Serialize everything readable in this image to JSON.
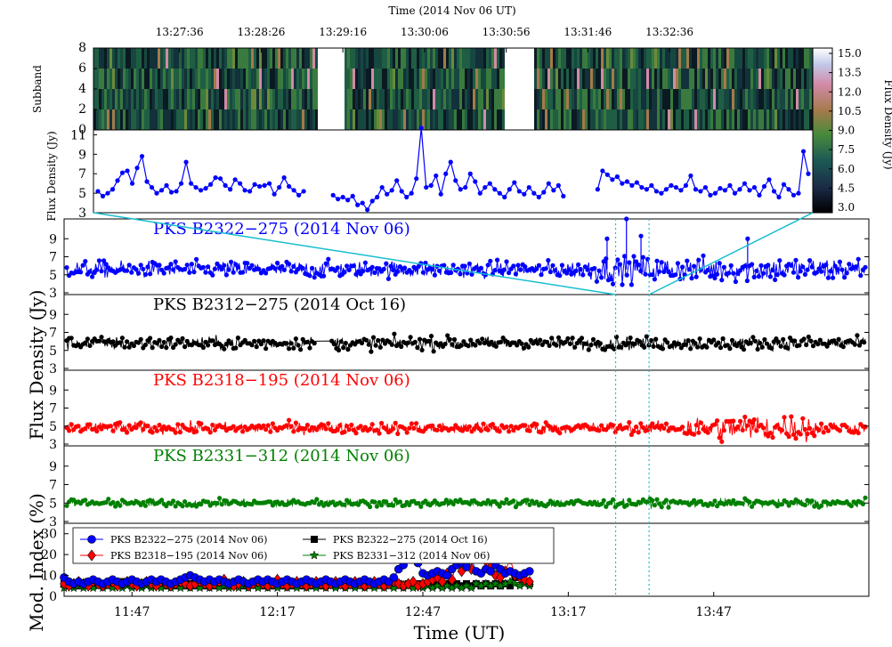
{
  "top_axis_title": "Time (2014 Nov 06 UT)",
  "top_ticks": [
    "13:27:36",
    "13:28:26",
    "13:29:16",
    "13:30:06",
    "13:30:56",
    "13:31:46",
    "13:32:36"
  ],
  "dynspec_ylabel": "Subband",
  "dynspec_yticks": [
    "0",
    "2",
    "4",
    "6",
    "8"
  ],
  "colorbar_label": "Flux Density (Jy)",
  "colorbar_ticks": [
    "3.0",
    "4.5",
    "6.0",
    "7.5",
    "9.0",
    "10.5",
    "12.0",
    "13.5",
    "15.0"
  ],
  "zoom_ylabel": "Flux Density (Jy)",
  "zoom_yticks": [
    "3",
    "5",
    "7",
    "9",
    "11"
  ],
  "main_ylabel": "Flux Density (Jy)",
  "panel_yticks": [
    "3",
    "5",
    "7",
    "9"
  ],
  "bottom_xlabel": "Time (UT)",
  "bottom_xticks": [
    "11:47",
    "12:17",
    "12:47",
    "13:17",
    "13:47"
  ],
  "mod_ylabel": "Mod. Index (%)",
  "mod_yticks": [
    "0",
    "10",
    "20",
    "30"
  ],
  "colors": {
    "blue": "#0000ff",
    "black": "#000000",
    "red": "#ff0000",
    "green": "#008000",
    "cyan": "#17becf"
  },
  "chart_data": [
    {
      "type": "heatmap",
      "title": "",
      "xlabel": "Time (2014 Nov 06 UT)",
      "ylabel": "Subband",
      "ylim": [
        0,
        8
      ],
      "colorbar": {
        "label": "Flux Density (Jy)",
        "range": [
          3.0,
          15.0
        ]
      },
      "data_gaps": [
        [
          "13:29:02",
          "13:29:16"
        ],
        [
          "13:30:56",
          "13:31:12"
        ]
      ]
    },
    {
      "type": "line",
      "title": "",
      "ylabel": "Flux Density (Jy)",
      "ylim": [
        3,
        11.5
      ],
      "x_start": "13:26:46",
      "x_step_seconds": 3,
      "series": [
        {
          "values": [
            5.2,
            4.7,
            5.0,
            5.4,
            6.3,
            7.1,
            7.3,
            6.0,
            7.6,
            8.8,
            6.2,
            5.6,
            5.0,
            5.3,
            5.8,
            5.1,
            5.2,
            6.0,
            8.2,
            6.0,
            5.6,
            5.3,
            5.5,
            5.9,
            6.6,
            6.5,
            5.8,
            5.4,
            6.4,
            6.0,
            5.3,
            5.2,
            5.9,
            5.7,
            5.8,
            6.0,
            4.9,
            5.6,
            6.6,
            5.7,
            5.3,
            4.8,
            5.2,
            null,
            null,
            null,
            null,
            null,
            4.8,
            4.4,
            4.6,
            4.3,
            4.7,
            3.8,
            4.0,
            3.3,
            4.2,
            4.6,
            5.6,
            4.9,
            5.3,
            6.3,
            5.2,
            4.6,
            5.0,
            6.5,
            11.7,
            5.6,
            5.8,
            6.8,
            4.9,
            7.0,
            8.2,
            6.3,
            5.4,
            5.6,
            7.0,
            6.2,
            5.0,
            5.6,
            6.0,
            5.4,
            5.0,
            4.6,
            5.4,
            6.1,
            5.2,
            4.9,
            5.6,
            5.0,
            4.6,
            5.1,
            6.0,
            5.3,
            5.8,
            4.7,
            null,
            null,
            null,
            null,
            null,
            null,
            5.4,
            7.3,
            6.9,
            6.4,
            6.7,
            6.0,
            6.2,
            5.8,
            6.1,
            5.6,
            5.4,
            5.8,
            5.2,
            5.0,
            5.4,
            5.8,
            5.6,
            5.3,
            5.8,
            6.8,
            5.4,
            5.2,
            5.6,
            4.8,
            5.0,
            5.5,
            5.3,
            5.8,
            5.0,
            5.4,
            6.0,
            5.3,
            5.6,
            4.8,
            5.7,
            6.4,
            5.2,
            4.6,
            5.9,
            5.4,
            4.8,
            5.0,
            9.3,
            7.0
          ]
        }
      ]
    },
    {
      "type": "scatter",
      "title": "PKS B2322−275 (2014 Nov 06)",
      "ylabel": "Flux Density (Jy)",
      "ylim": [
        3,
        11
      ],
      "series": [
        {
          "name": "PKS B2322−275 (2014 Nov 06)",
          "mean": 5.6,
          "spread": 0.9,
          "spikes": [
            [
              "13:25",
              9.0
            ],
            [
              "13:29",
              11.2
            ],
            [
              "13:32",
              9.3
            ],
            [
              "13:54",
              9.0
            ]
          ]
        }
      ]
    },
    {
      "type": "scatter",
      "title": "PKS B2312−275 (2014 Oct 16)",
      "ylabel": "Flux Density (Jy)",
      "ylim": [
        3,
        11
      ],
      "series": [
        {
          "name": "PKS B2312−275 (2014 Oct 16)",
          "mean": 5.8,
          "spread": 0.7,
          "gap": [
            "12:25",
            "12:28"
          ]
        }
      ]
    },
    {
      "type": "scatter",
      "title": "PKS B2318−195 (2014 Nov 06)",
      "ylabel": "Flux Density (Jy)",
      "ylim": [
        3,
        11
      ],
      "series": [
        {
          "name": "PKS B2318−195 (2014 Nov 06)",
          "mean": 4.8,
          "spread": 0.6,
          "burst": [
            "13:41",
            "14:09"
          ]
        }
      ]
    },
    {
      "type": "scatter",
      "title": "PKS B2331−312 (2014 Nov 06)",
      "ylabel": "Flux Density (Jy)",
      "ylim": [
        3,
        11
      ],
      "series": [
        {
          "name": "PKS B2331−312 (2014 Nov 06)",
          "mean": 5.0,
          "spread": 0.4
        }
      ]
    },
    {
      "type": "line",
      "title": "",
      "xlabel": "Time (UT)",
      "ylabel": "Mod. Index (%)",
      "ylim": [
        0,
        35
      ],
      "x_start": "11:33",
      "x_step_minutes": 1,
      "legend": "top-left",
      "series": [
        {
          "name": "PKS B2322−275 (2014 Nov 06)",
          "marker": "circle",
          "color": "#0000ff",
          "values": [
            9,
            7,
            6,
            7,
            6,
            7,
            8,
            7,
            6,
            7,
            8,
            7,
            6,
            7,
            8,
            7,
            6,
            7,
            8,
            7,
            8,
            7,
            6,
            7,
            8,
            9,
            10,
            9,
            8,
            7,
            8,
            7,
            8,
            7,
            6,
            7,
            8,
            7,
            6,
            7,
            8,
            7,
            8,
            7,
            6,
            7,
            8,
            7,
            6,
            7,
            8,
            7,
            6,
            7,
            8,
            7,
            6,
            7,
            8,
            7,
            6,
            7,
            8,
            7,
            6,
            7,
            8,
            7,
            9,
            13,
            15,
            19,
            24,
            16,
            11,
            10,
            11,
            12,
            11,
            10,
            13,
            15,
            16,
            14,
            18,
            12,
            11,
            13,
            12,
            15,
            13,
            11,
            12,
            11,
            10,
            11,
            12
          ]
        },
        {
          "name": "PKS B2318−195 (2014 Nov 06)",
          "marker": "diamond",
          "color": "#ff0000",
          "values": [
            6,
            5,
            6,
            7,
            6,
            5,
            7,
            6,
            5,
            6,
            7,
            5,
            6,
            7,
            6,
            5,
            6,
            7,
            6,
            5,
            7,
            6,
            5,
            6,
            7,
            6,
            5,
            6,
            7,
            6,
            5,
            6,
            7,
            8,
            6,
            5,
            6,
            7,
            5,
            6,
            7,
            6,
            5,
            6,
            8,
            6,
            5,
            6,
            7,
            6,
            5,
            6,
            7,
            6,
            5,
            6,
            7,
            6,
            5,
            6,
            7,
            6,
            5,
            6,
            7,
            6,
            5,
            6,
            7,
            6,
            5,
            6,
            7,
            5,
            6,
            7,
            8,
            9,
            7,
            11,
            8,
            17,
            12,
            16,
            13,
            27,
            20,
            17,
            14,
            10,
            9,
            12,
            18,
            10,
            9,
            8,
            7
          ]
        },
        {
          "name": "PKS B2322−275 (2014 Oct 16)",
          "marker": "square",
          "color": "#000000",
          "values": [
            6,
            5,
            6,
            5,
            6,
            7,
            5,
            6,
            5,
            6,
            5,
            6,
            7,
            6,
            5,
            6,
            5,
            6,
            5,
            7,
            6,
            5,
            6,
            5,
            6,
            5,
            6,
            5,
            6,
            5,
            6,
            5,
            6,
            5,
            6,
            5,
            6,
            5,
            6,
            7,
            6,
            5,
            6,
            5,
            6,
            5,
            6,
            5,
            6,
            5,
            6,
            5,
            6,
            5,
            7,
            6,
            5,
            6,
            5,
            6,
            5,
            6,
            5,
            6,
            5,
            6,
            5,
            6,
            5,
            6,
            5,
            6,
            5,
            6,
            5,
            6,
            5,
            6,
            5,
            6,
            5,
            6,
            5,
            6,
            5,
            6,
            5,
            6,
            5,
            6,
            5,
            6,
            5,
            9,
            10,
            7,
            6
          ]
        },
        {
          "name": "PKS B2331−312 (2014 Nov 06)",
          "marker": "star",
          "color": "#008000",
          "values": [
            4,
            5,
            4,
            5,
            4,
            5,
            4,
            5,
            4,
            5,
            4,
            5,
            4,
            5,
            4,
            5,
            4,
            5,
            4,
            5,
            4,
            5,
            4,
            5,
            4,
            5,
            4,
            5,
            4,
            5,
            4,
            5,
            4,
            5,
            4,
            5,
            4,
            5,
            4,
            5,
            4,
            5,
            4,
            5,
            4,
            5,
            4,
            5,
            4,
            5,
            4,
            5,
            4,
            5,
            4,
            5,
            4,
            5,
            4,
            5,
            4,
            5,
            4,
            5,
            4,
            5,
            4,
            5,
            4,
            5,
            4,
            5,
            4,
            5,
            4,
            5,
            4,
            5,
            4,
            5,
            4,
            5,
            4,
            5,
            4,
            6,
            5,
            6,
            5,
            6,
            5,
            6,
            7,
            6,
            5,
            6,
            5
          ]
        }
      ]
    }
  ]
}
